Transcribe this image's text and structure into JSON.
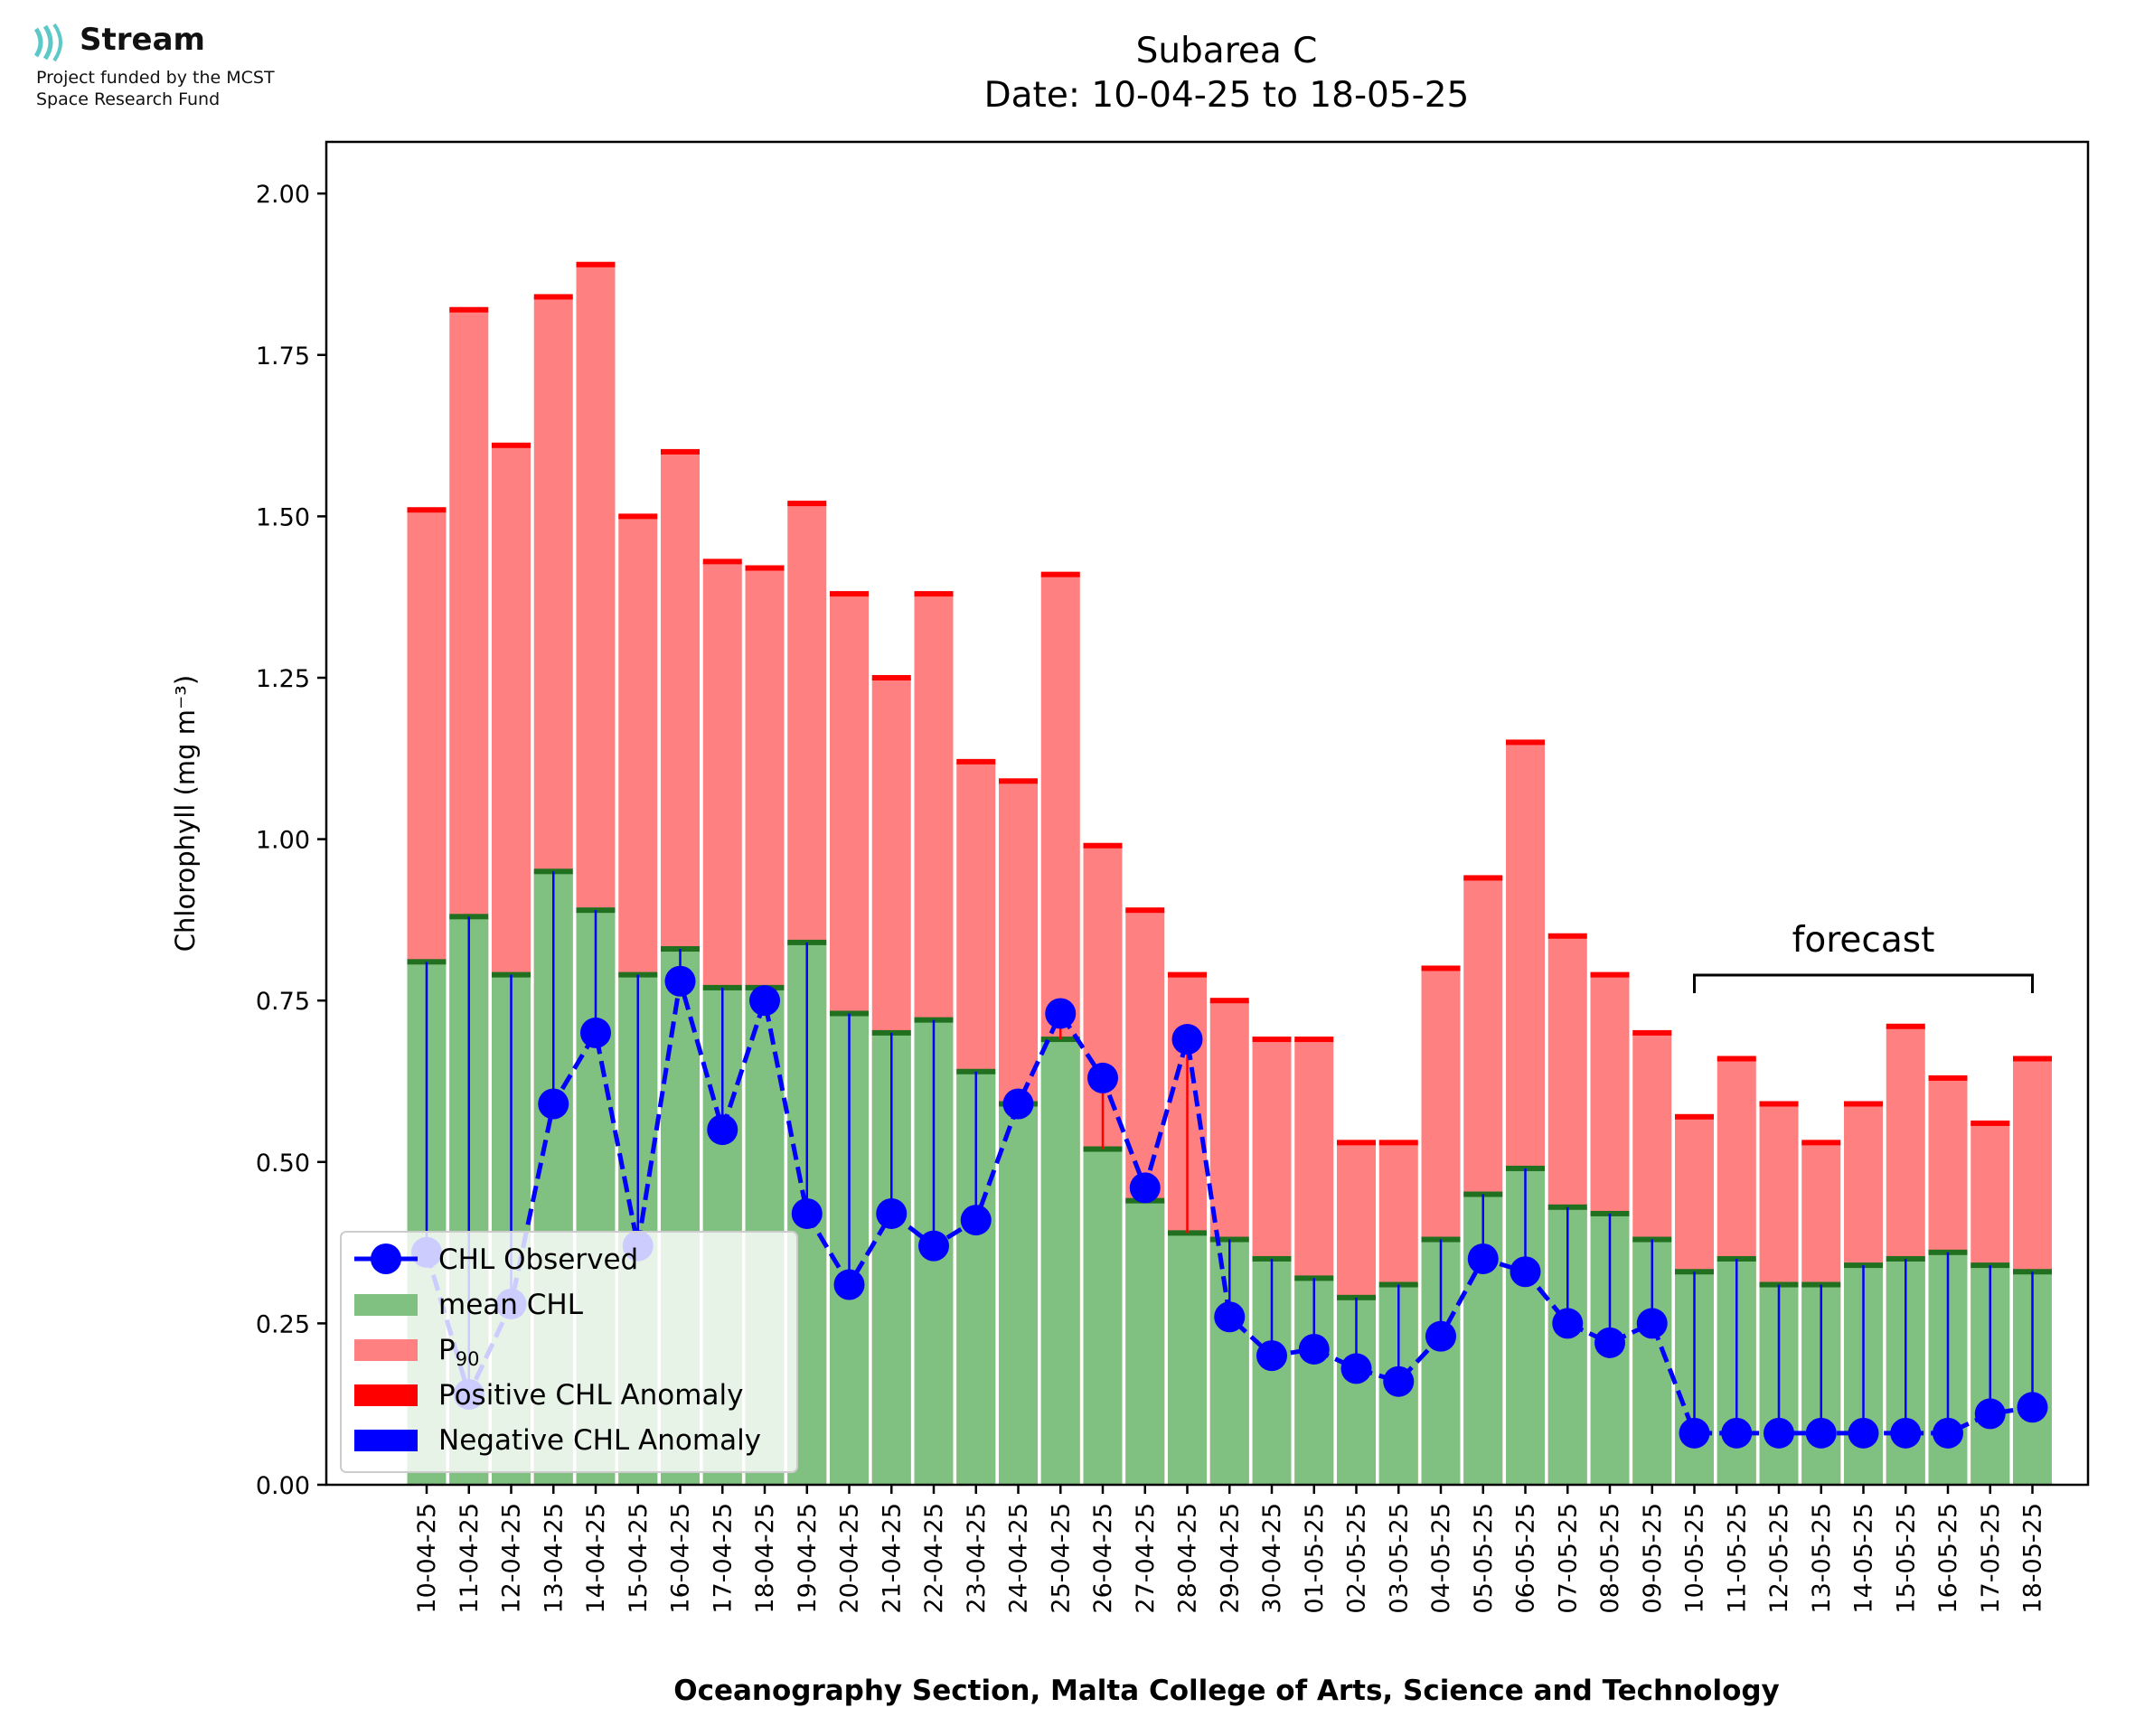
{
  "logo": {
    "name": "Stream",
    "funding_line1": "Project funded by the MCST",
    "funding_line2": "Space Research Fund"
  },
  "chart_data": {
    "type": "bar",
    "title": "Subarea C",
    "subtitle": "Date: 10-04-25 to 18-05-25",
    "xlabel": "Oceanography Section, Malta College of Arts, Science and Technology",
    "ylabel": "Chlorophyll (mg m⁻³)",
    "ylim": [
      0,
      2.08
    ],
    "yticks": [
      "0.00",
      "0.25",
      "0.50",
      "0.75",
      "1.00",
      "1.25",
      "1.50",
      "1.75",
      "2.00"
    ],
    "grid": false,
    "legend_position": "lower-left",
    "categories": [
      "10-04-25",
      "11-04-25",
      "12-04-25",
      "13-04-25",
      "14-04-25",
      "15-04-25",
      "16-04-25",
      "17-04-25",
      "18-04-25",
      "19-04-25",
      "20-04-25",
      "21-04-25",
      "22-04-25",
      "23-04-25",
      "24-04-25",
      "25-04-25",
      "26-04-25",
      "27-04-25",
      "28-04-25",
      "29-04-25",
      "30-04-25",
      "01-05-25",
      "02-05-25",
      "03-05-25",
      "04-05-25",
      "05-05-25",
      "06-05-25",
      "07-05-25",
      "08-05-25",
      "09-05-25",
      "10-05-25",
      "11-05-25",
      "12-05-25",
      "13-05-25",
      "14-05-25",
      "15-05-25",
      "16-05-25",
      "17-05-25",
      "18-05-25"
    ],
    "series": [
      {
        "name": "CHL Observed",
        "type": "line",
        "color": "#0000ff",
        "values": [
          0.36,
          0.14,
          0.28,
          0.59,
          0.7,
          0.37,
          0.78,
          0.55,
          0.75,
          0.42,
          0.31,
          0.42,
          0.37,
          0.41,
          0.59,
          0.73,
          0.63,
          0.46,
          0.69,
          0.26,
          0.2,
          0.21,
          0.18,
          0.16,
          0.23,
          0.35,
          0.33,
          0.25,
          0.22,
          0.25,
          0.08,
          0.08,
          0.08,
          0.08,
          0.08,
          0.08,
          0.08,
          0.11,
          0.12
        ]
      },
      {
        "name": "mean CHL",
        "type": "bar",
        "color": "#80c080",
        "values": [
          0.81,
          0.88,
          0.79,
          0.95,
          0.89,
          0.79,
          0.83,
          0.77,
          0.77,
          0.84,
          0.73,
          0.7,
          0.72,
          0.64,
          0.59,
          0.69,
          0.52,
          0.44,
          0.39,
          0.38,
          0.35,
          0.32,
          0.29,
          0.31,
          0.38,
          0.45,
          0.49,
          0.43,
          0.42,
          0.38,
          0.33,
          0.35,
          0.31,
          0.31,
          0.34,
          0.35,
          0.36,
          0.34,
          0.33
        ]
      },
      {
        "name": "P90",
        "type": "bar",
        "color": "#ff8080",
        "values": [
          1.51,
          1.82,
          1.61,
          1.84,
          1.89,
          1.5,
          1.6,
          1.43,
          1.42,
          1.52,
          1.38,
          1.25,
          1.38,
          1.12,
          1.09,
          1.41,
          0.99,
          0.89,
          0.79,
          0.75,
          0.69,
          0.69,
          0.53,
          0.53,
          0.8,
          0.94,
          1.15,
          0.85,
          0.79,
          0.7,
          0.57,
          0.66,
          0.59,
          0.53,
          0.59,
          0.71,
          0.63,
          0.56,
          0.66
        ]
      },
      {
        "name": "Positive CHL Anomaly",
        "type": "marker",
        "color": "#ff0000"
      },
      {
        "name": "Negative CHL Anomaly",
        "type": "marker",
        "color": "#0000ff"
      }
    ],
    "legend": [
      {
        "label": "CHL Observed",
        "kind": "line"
      },
      {
        "label": "mean CHL",
        "kind": "patch",
        "color": "#80c080"
      },
      {
        "label": "P",
        "sub": "90",
        "kind": "patch",
        "color": "#ff8080"
      },
      {
        "label": "Positive CHL Anomaly",
        "kind": "patch",
        "color": "#ff0000"
      },
      {
        "label": "Negative CHL Anomaly",
        "kind": "patch",
        "color": "#0000ff"
      }
    ],
    "annotation": {
      "text": "forecast",
      "from": "10-05-25",
      "to": "18-05-25"
    }
  }
}
